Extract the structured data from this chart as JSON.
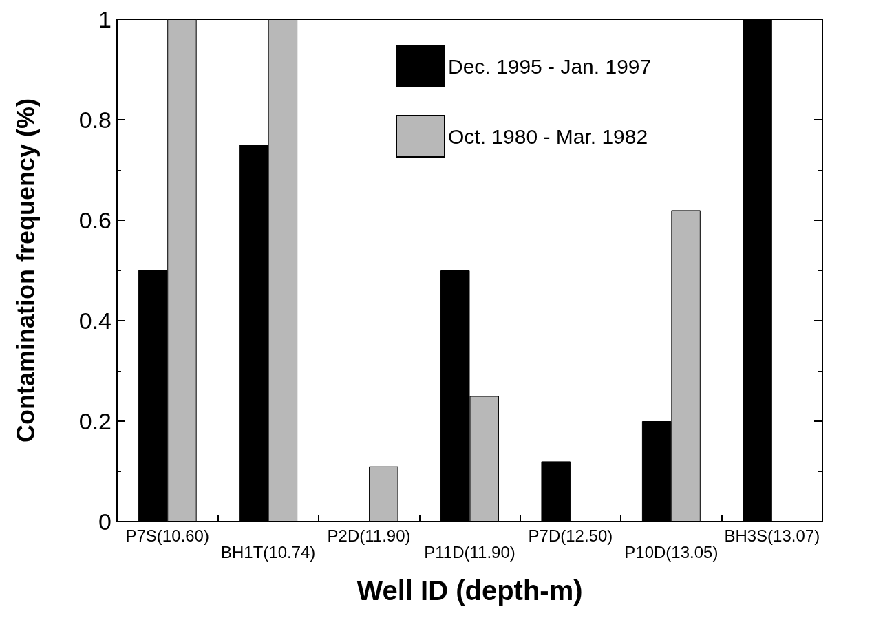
{
  "chart_data": {
    "type": "bar",
    "xlabel": "Well ID (depth-m)",
    "ylabel": "Contamination frequency (%)",
    "categories": [
      "P7S(10.60)",
      "BH1T(10.74)",
      "P2D(11.90)",
      "P11D(11.90)",
      "P7D(12.50)",
      "P10D(13.05)",
      "BH3S(13.07)"
    ],
    "series": [
      {
        "name": "Dec. 1995 - Jan. 1997",
        "color": "#000000",
        "values": [
          0.5,
          0.75,
          0,
          0.5,
          0.12,
          0.2,
          1.0
        ]
      },
      {
        "name": "Oct. 1980 - Mar. 1982",
        "color": "#b8b8b8",
        "values": [
          1.0,
          1.0,
          0.11,
          0.25,
          0,
          0.62,
          0
        ]
      }
    ],
    "ylim": [
      0,
      1
    ],
    "yticks": [
      0,
      0.2,
      0.4,
      0.6,
      0.8,
      1
    ],
    "grid": false,
    "legend": "top"
  }
}
